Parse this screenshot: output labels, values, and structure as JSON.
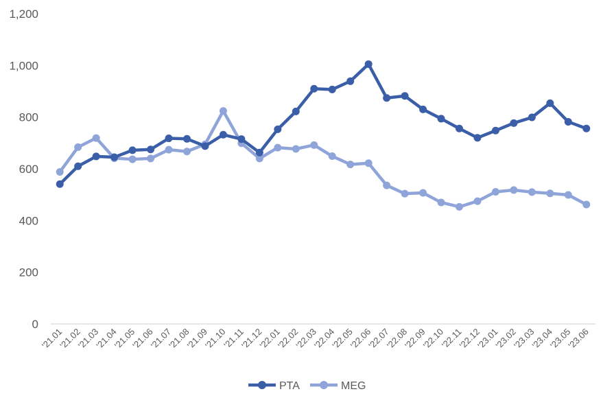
{
  "chart_data": {
    "type": "line",
    "title": "",
    "xlabel": "",
    "ylabel": "",
    "categories": [
      "'21.01",
      "'21.02",
      "'21.03",
      "'21.04",
      "'21.05",
      "'21.06",
      "'21.07",
      "'21.08",
      "'21.09",
      "'21.10",
      "'21.11",
      "'21.12",
      "'22.01",
      "'22.02",
      "'22.03",
      "'22.04",
      "'22.05",
      "'22.06",
      "'22.07",
      "'22.08",
      "'22.09",
      "'22.10",
      "'22.11",
      "'22.12",
      "'23.01",
      "'23.02",
      "'23.03",
      "'23.04",
      "'23.05",
      "'23.06"
    ],
    "ylim": [
      0,
      1200
    ],
    "yticks": [
      0,
      200,
      400,
      600,
      800,
      1000,
      1200
    ],
    "ytick_labels": [
      "0",
      "200",
      "400",
      "600",
      "800",
      "1,000",
      "1,200"
    ],
    "grid": false,
    "legend_position": "bottom",
    "series": [
      {
        "name": "PTA",
        "color": "#3a5ea8",
        "values": [
          541,
          610,
          648,
          645,
          672,
          675,
          718,
          716,
          688,
          732,
          715,
          663,
          753,
          822,
          910,
          907,
          939,
          1005,
          874,
          882,
          830,
          794,
          756,
          720,
          748,
          777,
          799,
          854,
          782,
          756
        ]
      },
      {
        "name": "MEG",
        "color": "#8fa4d8",
        "values": [
          588,
          684,
          719,
          641,
          637,
          640,
          674,
          667,
          695,
          824,
          699,
          640,
          682,
          677,
          692,
          649,
          617,
          622,
          536,
          504,
          507,
          470,
          453,
          475,
          511,
          518,
          510,
          505,
          499,
          462
        ]
      }
    ]
  }
}
